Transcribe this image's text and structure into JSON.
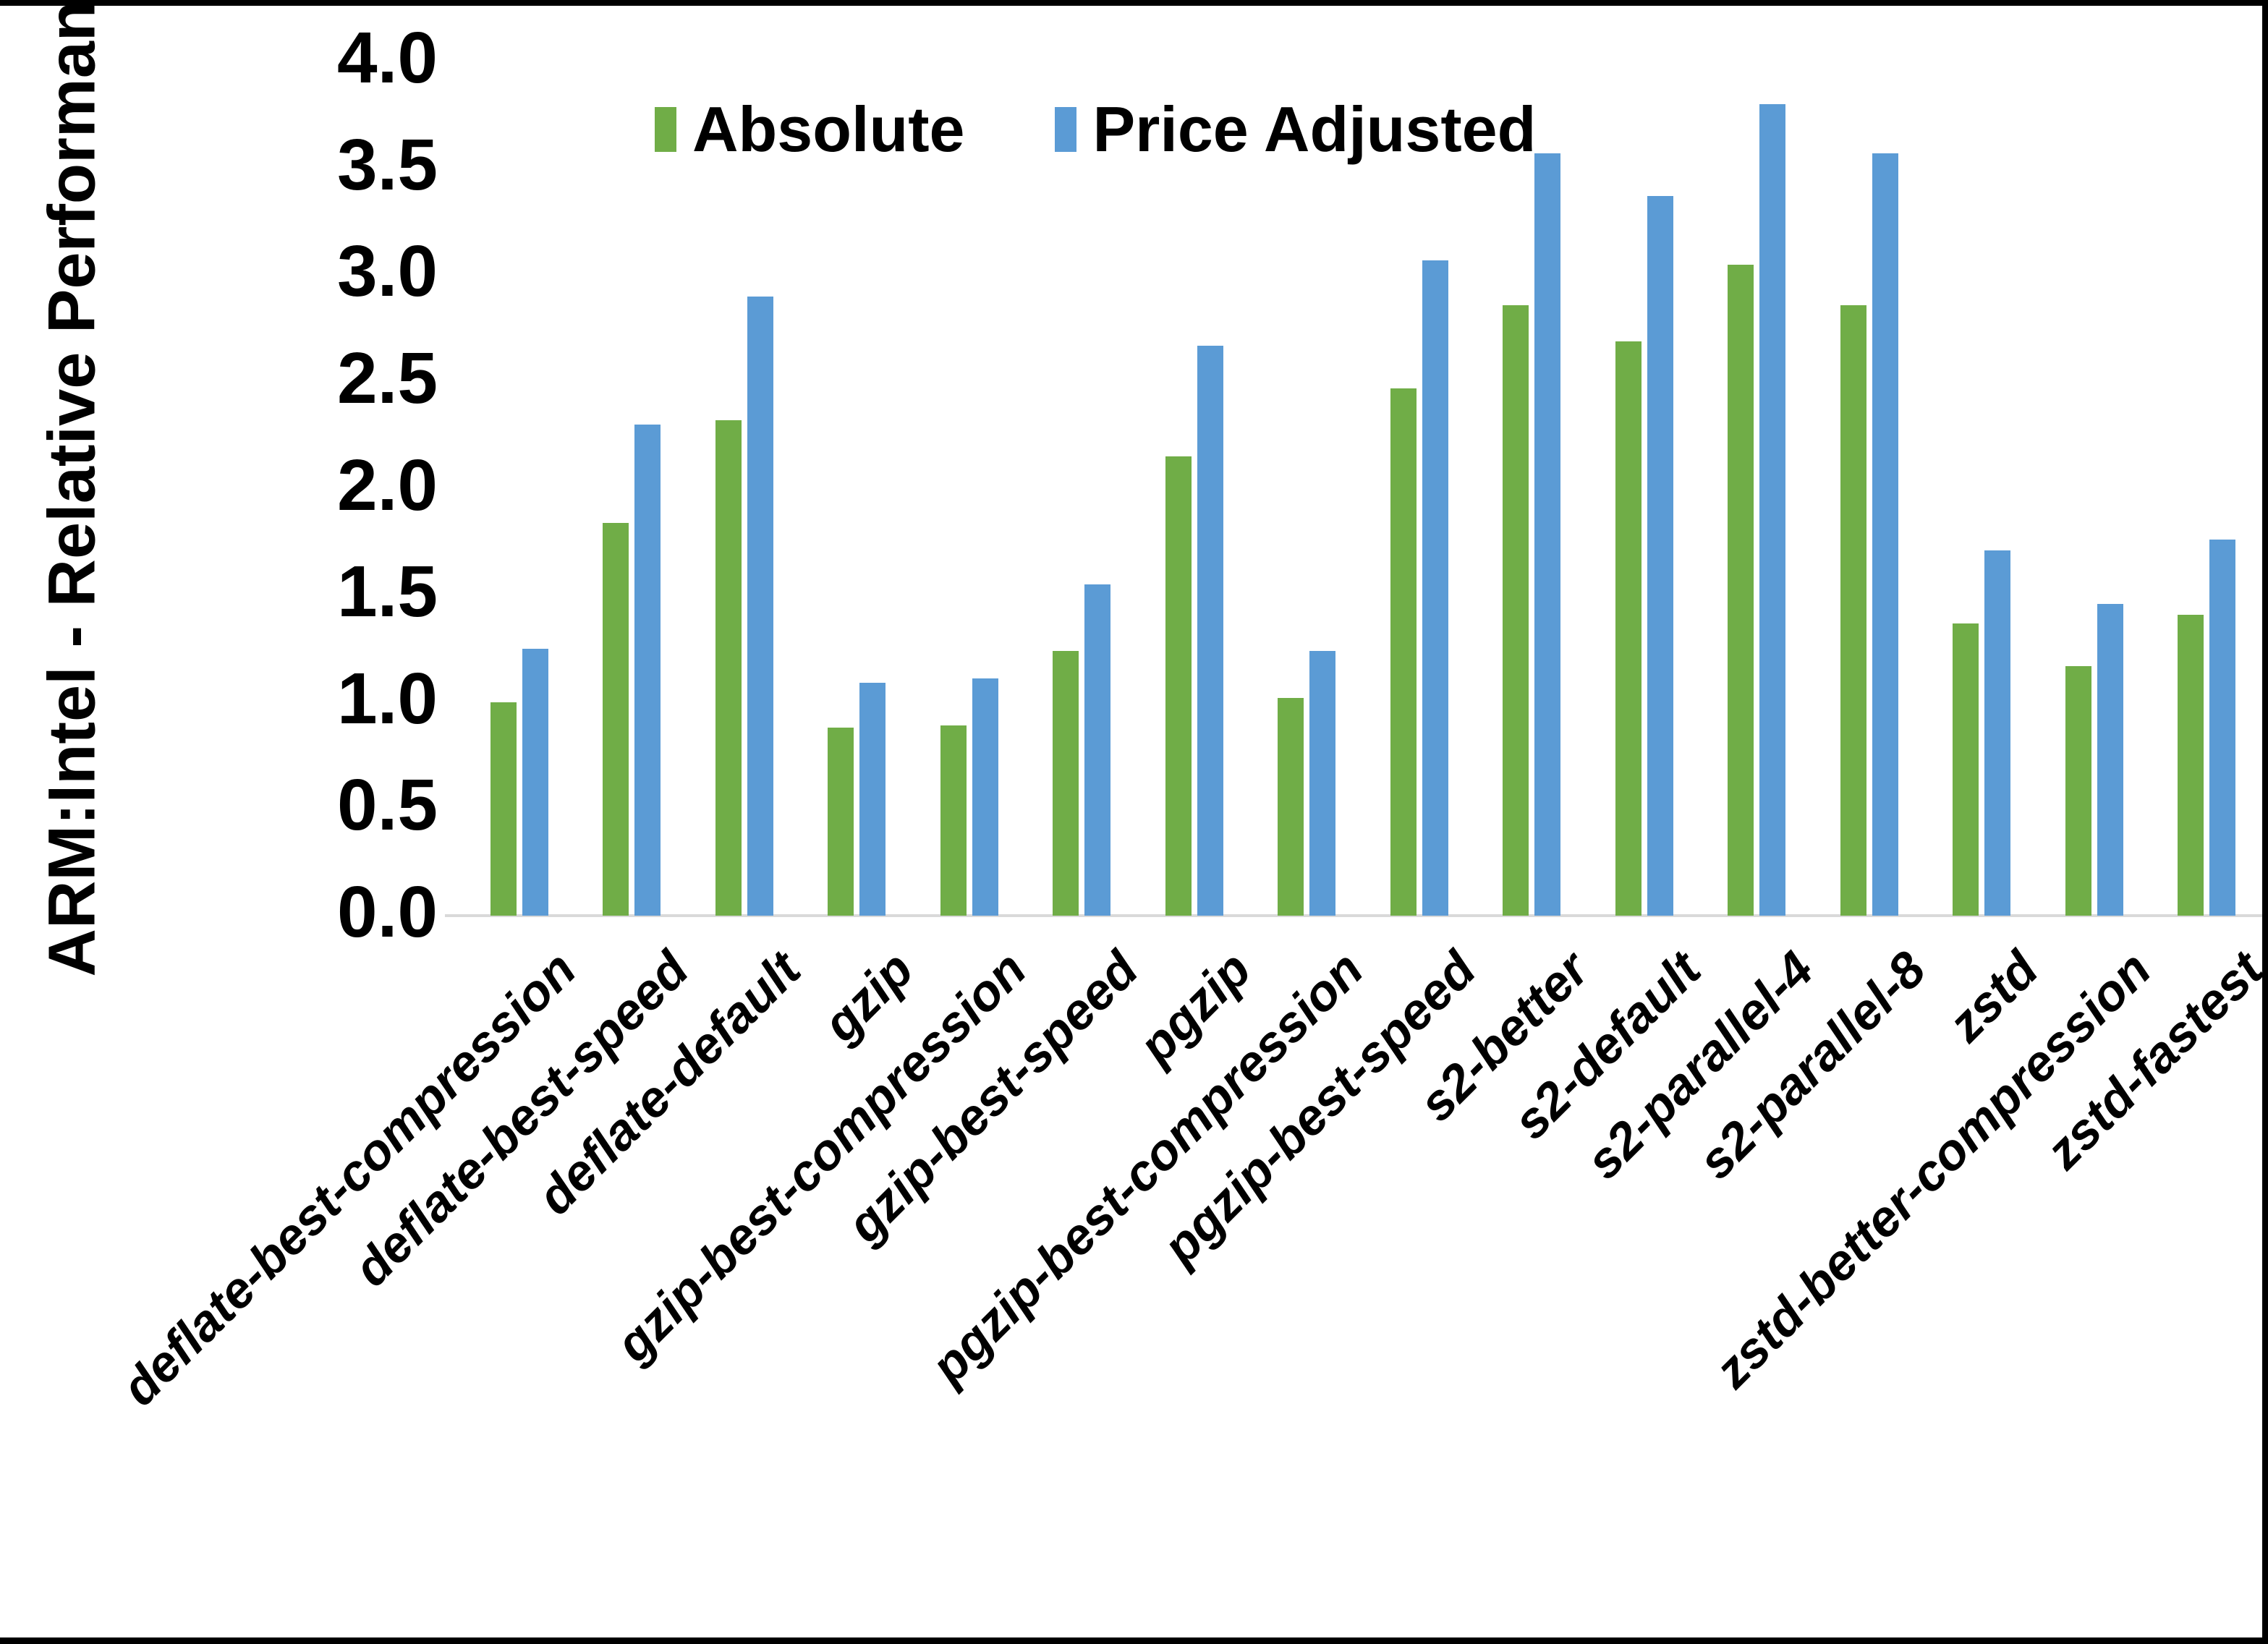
{
  "chart_data": {
    "type": "bar",
    "title": "",
    "xlabel": "",
    "ylabel": "ARM:Intel - Relative Performance",
    "ylim": [
      0.0,
      4.0
    ],
    "ytick_step": 0.5,
    "ytick_labels": [
      "4.0",
      "3.5",
      "3.0",
      "2.5",
      "2.0",
      "1.5",
      "1.0",
      "0.5",
      "0.0"
    ],
    "grid": false,
    "legend_position": "top-center",
    "categories": [
      "deflate-best-compression",
      "deflate-best-speed",
      "deflate-default",
      "gzip",
      "gzip-best-compression",
      "gzip-best-speed",
      "pgzip",
      "pgzip-best-compression",
      "pgzip-best-speed",
      "s2-better",
      "s2-default",
      "s2-parallel-4",
      "s2-parallel-8",
      "zstd",
      "zstd-better-compression",
      "zstd-fastest"
    ],
    "series": [
      {
        "name": "Absolute",
        "color": "#70AD47",
        "values": [
          1.0,
          1.84,
          2.32,
          0.88,
          0.89,
          1.24,
          2.15,
          1.02,
          2.47,
          2.86,
          2.69,
          3.05,
          2.86,
          1.37,
          1.17,
          1.41
        ]
      },
      {
        "name": "Price Adjusted",
        "color": "#5B9BD5",
        "values": [
          1.25,
          2.3,
          2.9,
          1.09,
          1.11,
          1.55,
          2.67,
          1.24,
          3.07,
          3.57,
          3.37,
          3.8,
          3.57,
          1.71,
          1.46,
          1.76
        ]
      }
    ]
  },
  "colors": {
    "background": "#FFFFFF",
    "axis_line": "#D9D9D9",
    "border": "#000000",
    "text": "#000000",
    "absolute_green": "#70AD47",
    "price_adjusted_blue": "#5B9BD5"
  }
}
